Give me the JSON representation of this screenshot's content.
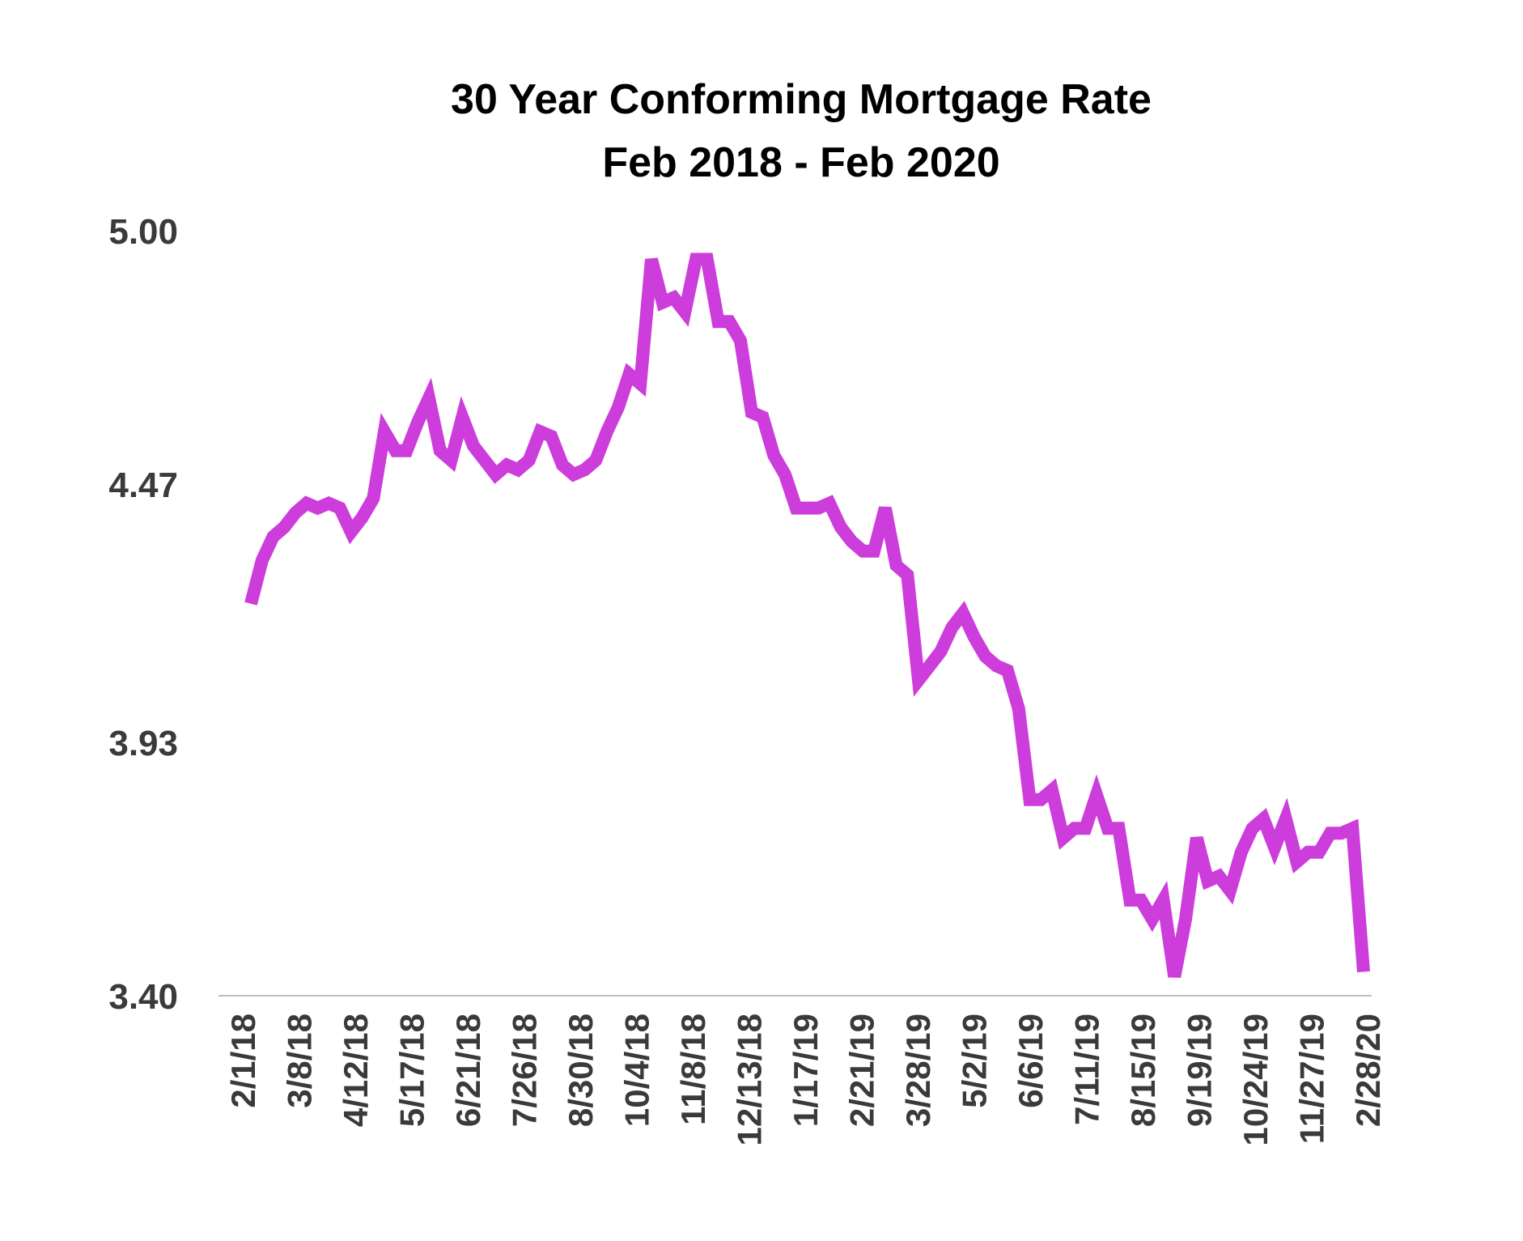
{
  "chart_data": {
    "type": "line",
    "title": "30 Year Conforming Mortgage Rate",
    "subtitle": "Feb 2018 - Feb 2020",
    "xlabel": "",
    "ylabel": "",
    "ylim": [
      3.4,
      5.0
    ],
    "yticks": [
      "5.00",
      "4.47",
      "3.93",
      "3.40"
    ],
    "grid": false,
    "legend": "none",
    "xticks": [
      "2/1/18",
      "3/8/18",
      "4/12/18",
      "5/17/18",
      "6/21/18",
      "7/26/18",
      "8/30/18",
      "10/4/18",
      "11/8/18",
      "12/13/18",
      "1/17/19",
      "2/21/19",
      "3/28/19",
      "5/2/19",
      "6/6/19",
      "7/11/19",
      "8/15/19",
      "9/19/19",
      "10/24/19",
      "11/27/19",
      "2/28/20"
    ],
    "series": [
      {
        "color": "#cc3ddb",
        "values": [
          4.22,
          4.31,
          4.36,
          4.38,
          4.41,
          4.43,
          4.42,
          4.43,
          4.42,
          4.37,
          4.4,
          4.44,
          4.58,
          4.54,
          4.54,
          4.6,
          4.65,
          4.54,
          4.52,
          4.61,
          4.55,
          4.52,
          4.49,
          4.51,
          4.5,
          4.52,
          4.58,
          4.57,
          4.51,
          4.49,
          4.5,
          4.52,
          4.58,
          4.63,
          4.7,
          4.68,
          4.94,
          4.85,
          4.86,
          4.83,
          4.94,
          4.94,
          4.81,
          4.81,
          4.77,
          4.62,
          4.61,
          4.53,
          4.49,
          4.42,
          4.42,
          4.42,
          4.43,
          4.38,
          4.35,
          4.33,
          4.33,
          4.42,
          4.3,
          4.28,
          4.06,
          4.09,
          4.12,
          4.17,
          4.2,
          4.15,
          4.11,
          4.09,
          4.08,
          4.0,
          3.81,
          3.81,
          3.83,
          3.73,
          3.75,
          3.75,
          3.82,
          3.75,
          3.75,
          3.6,
          3.6,
          3.56,
          3.6,
          3.44,
          3.56,
          3.73,
          3.64,
          3.65,
          3.62,
          3.7,
          3.75,
          3.77,
          3.71,
          3.77,
          3.68,
          3.7,
          3.7,
          3.74,
          3.74,
          3.75,
          3.45
        ]
      }
    ]
  }
}
